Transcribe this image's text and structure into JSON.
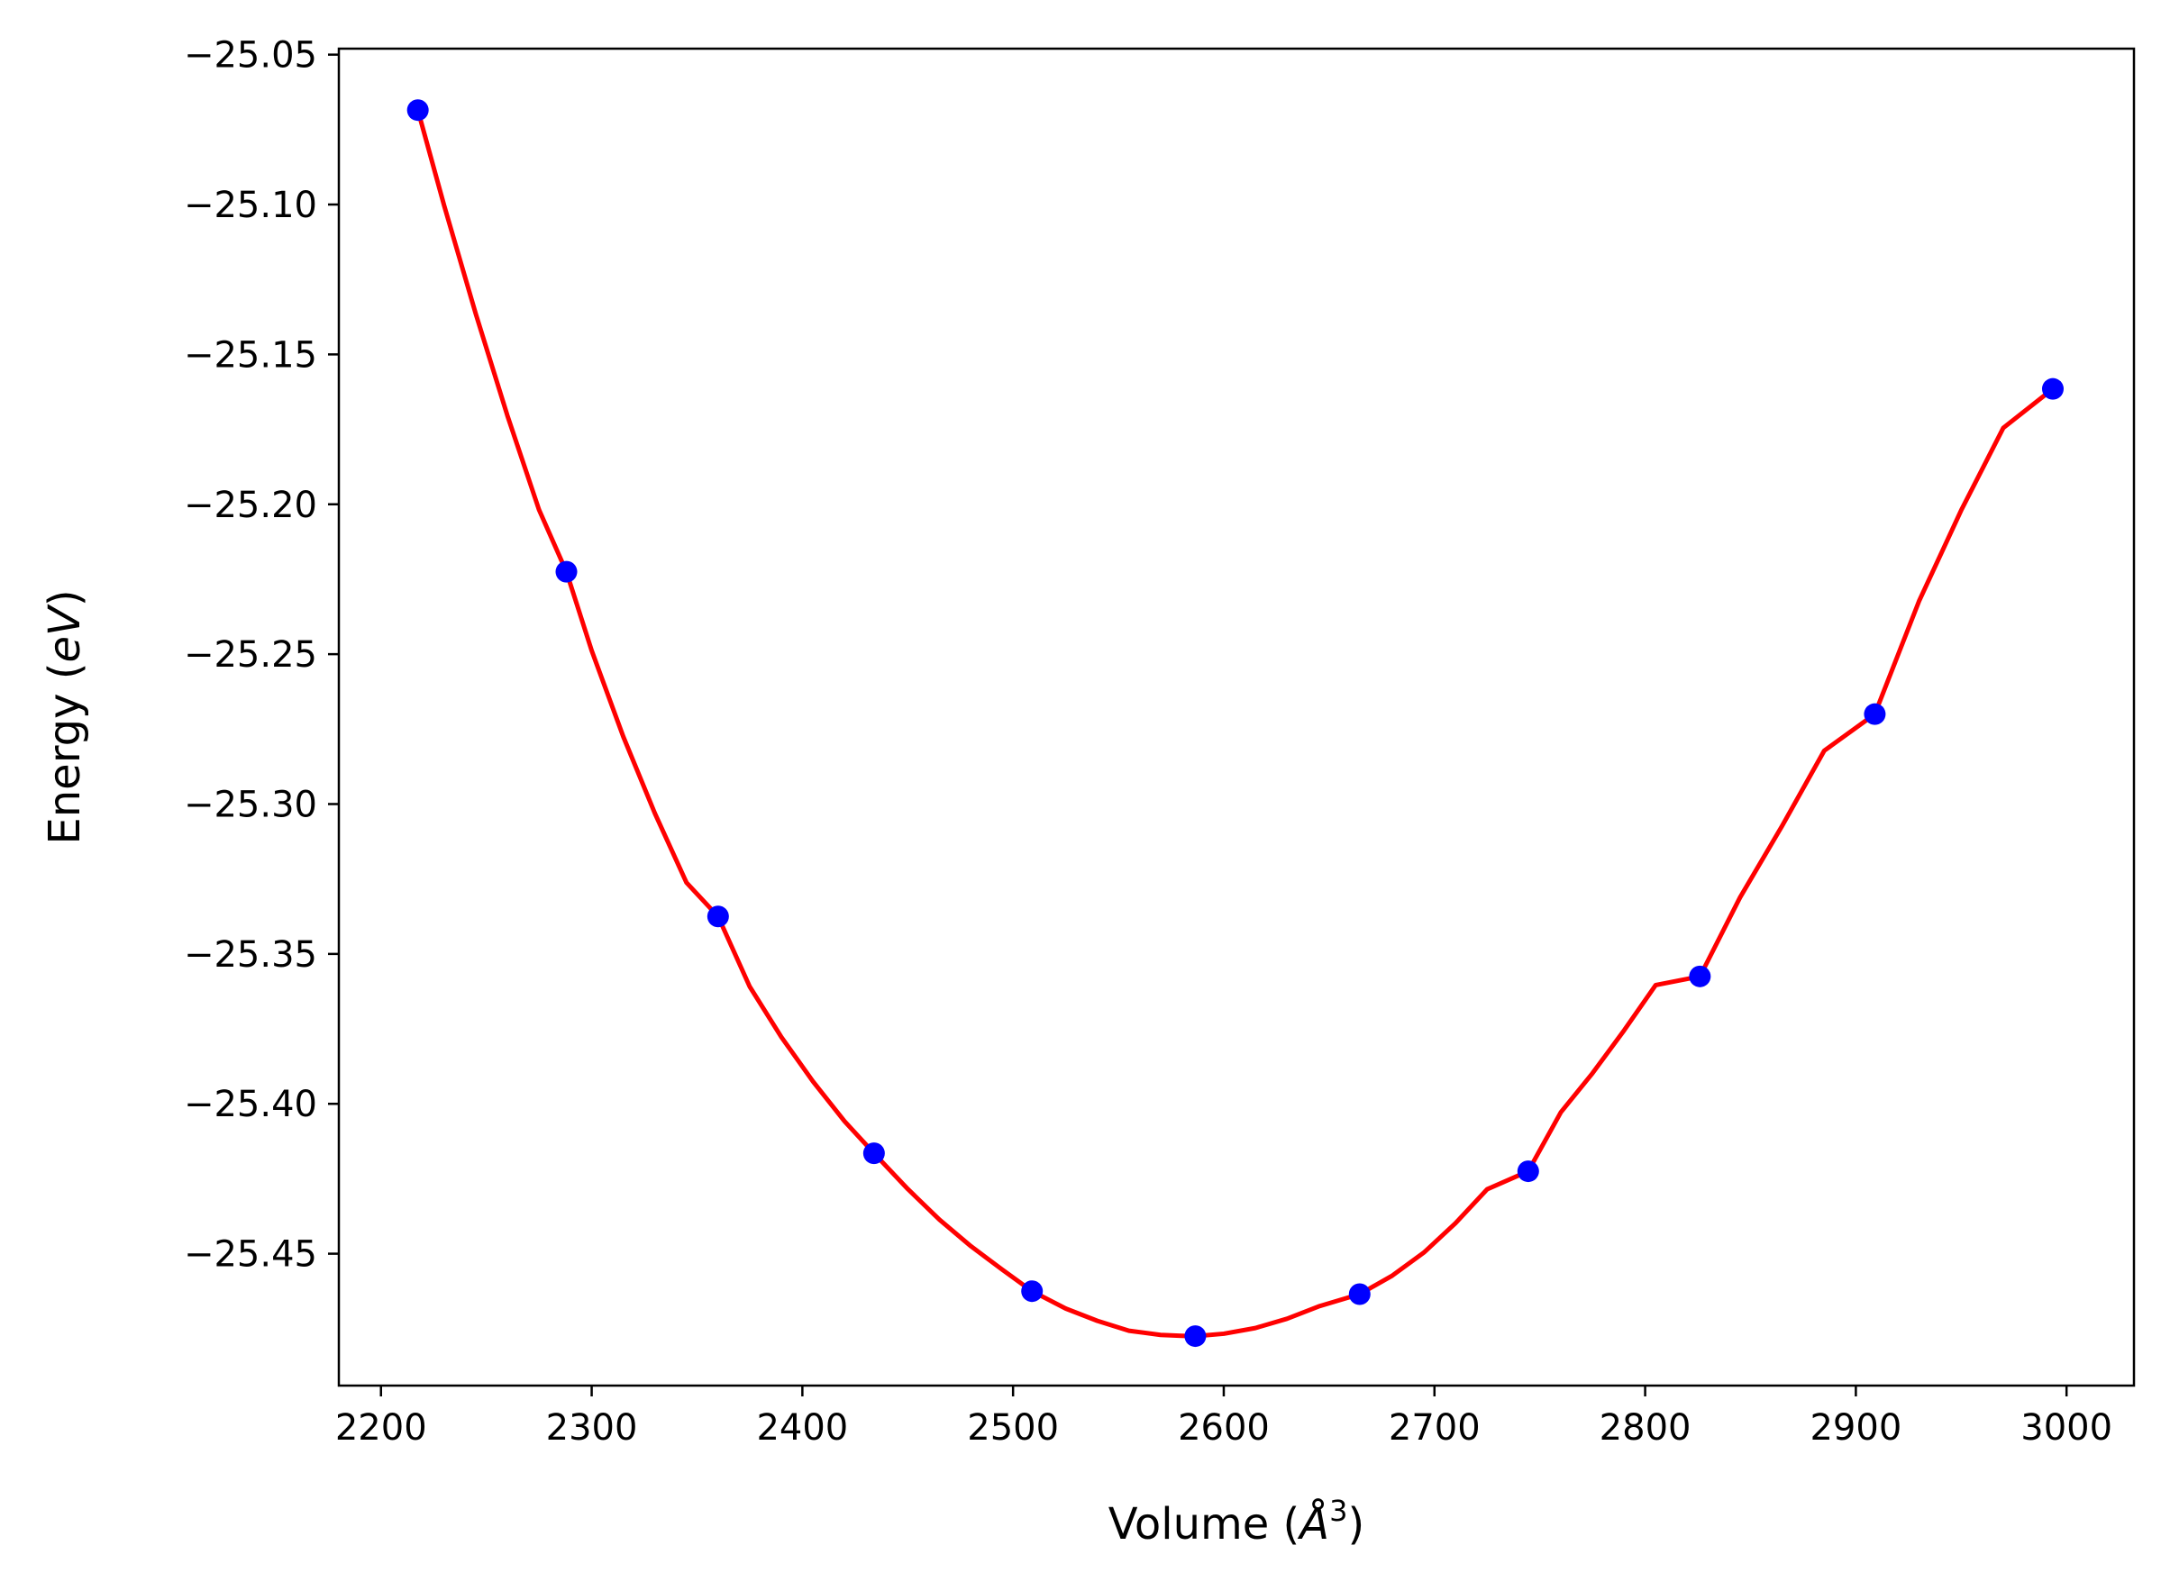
{
  "chart_data": {
    "type": "scatter",
    "title": "",
    "xlabel": "Volume (Å³)",
    "xlabel_parts": {
      "prefix": "Volume (",
      "unit": "Å",
      "exponent": "3",
      "suffix": ")"
    },
    "ylabel": "Energy (eV)",
    "ylabel_parts": {
      "prefix": "Energy (",
      "unit": "eV",
      "suffix": ")"
    },
    "xlim": [
      2180,
      3032
    ],
    "ylim": [
      -25.494,
      -25.048
    ],
    "xticks": [
      2200,
      2300,
      2400,
      2500,
      2600,
      2700,
      2800,
      2900,
      3000
    ],
    "xtick_labels": [
      "2200",
      "2300",
      "2400",
      "2500",
      "2600",
      "2700",
      "2800",
      "2900",
      "3000"
    ],
    "yticks": [
      -25.05,
      -25.1,
      -25.15,
      -25.2,
      -25.25,
      -25.3,
      -25.35,
      -25.4,
      -25.45
    ],
    "ytick_labels": [
      "−25.05",
      "−25.10",
      "−25.15",
      "−25.20",
      "−25.25",
      "−25.30",
      "−25.35",
      "−25.40",
      "−25.45"
    ],
    "grid": false,
    "legend": "none",
    "series": [
      {
        "kind": "scatter",
        "color": "#0000ff",
        "x": [
          2217.5,
          2288,
          2360,
          2434,
          2509,
          2586.5,
          2664.5,
          2744.5,
          2826,
          2909,
          2993.5
        ],
        "y": [
          -25.0685,
          -25.2225,
          -25.3375,
          -25.4165,
          -25.4625,
          -25.4775,
          -25.4635,
          -25.4225,
          -25.3575,
          -25.27,
          -25.1615
        ]
      },
      {
        "kind": "line",
        "color": "#ff0000",
        "x": [
          2217.5,
          2230,
          2245,
          2260,
          2275,
          2288,
          2300,
          2315,
          2330,
          2345,
          2360,
          2375,
          2390,
          2405,
          2420,
          2434,
          2450,
          2465,
          2480,
          2495,
          2509,
          2525,
          2540,
          2555,
          2570,
          2580,
          2586.5,
          2600,
          2615,
          2630,
          2645,
          2664.5,
          2680,
          2695,
          2710,
          2725,
          2744.5,
          2760,
          2775,
          2790,
          2805,
          2826,
          2845,
          2865,
          2885,
          2909,
          2930,
          2950,
          2970,
          2993.5
        ],
        "y": [
          -25.0685,
          -25.1004,
          -25.1365,
          -25.1704,
          -25.2018,
          -25.2225,
          -25.2488,
          -25.2775,
          -25.3031,
          -25.3262,
          -25.3375,
          -25.3609,
          -25.3777,
          -25.3925,
          -25.4058,
          -25.4165,
          -25.4284,
          -25.4386,
          -25.4475,
          -25.4554,
          -25.4625,
          -25.4683,
          -25.4724,
          -25.4757,
          -25.4771,
          -25.4774,
          -25.4775,
          -25.4767,
          -25.4748,
          -25.4717,
          -25.4676,
          -25.4635,
          -25.4573,
          -25.4496,
          -25.4398,
          -25.4285,
          -25.4225,
          -25.4028,
          -25.3898,
          -25.3755,
          -25.3604,
          -25.3575,
          -25.3312,
          -25.3073,
          -25.2822,
          -25.27,
          -25.2323,
          -25.202,
          -25.1745,
          -25.1615
        ]
      }
    ]
  }
}
